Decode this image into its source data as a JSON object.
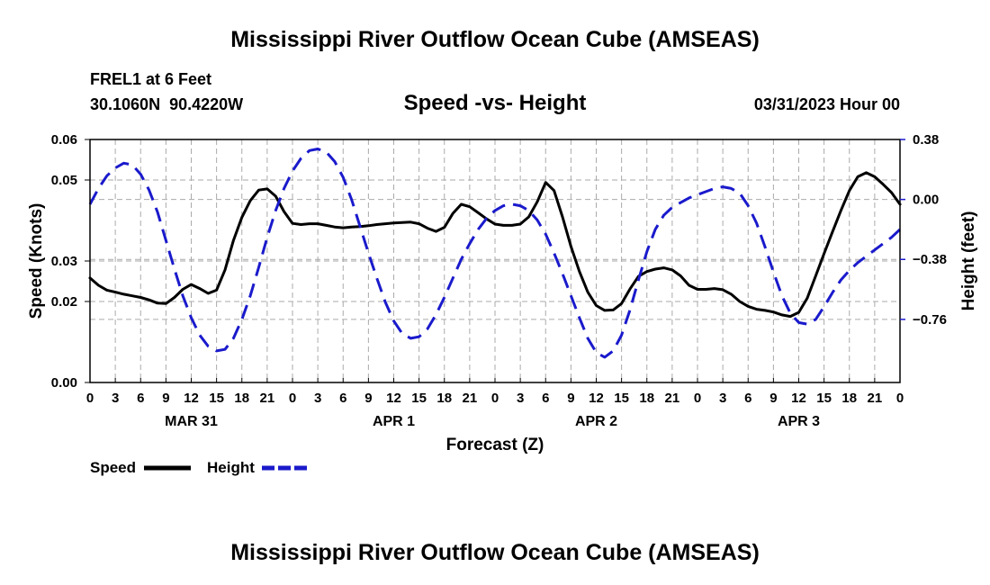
{
  "page": {
    "title": "Mississippi River Outflow Ocean Cube (AMSEAS)",
    "station": "FREL1 at 6 Feet",
    "coords": "30.1060N  90.4220W",
    "datetime": "03/31/2023 Hour 00",
    "footer_title": "Mississippi River Outflow Ocean Cube (AMSEAS)"
  },
  "colors": {
    "speed": "#000000",
    "height": "#1a1acc",
    "grid": "#aaaaaa"
  },
  "chart_data": {
    "type": "line",
    "title": "Speed -vs- Height",
    "xlabel": "Forecast (Z)",
    "ylabel": "Speed (Knots)",
    "y2label": "Height (feet)",
    "xlim": [
      0,
      96
    ],
    "ylim": [
      0.0,
      0.06
    ],
    "y2lim": [
      -1.16,
      0.38
    ],
    "y_ticks": [
      0.0,
      0.02,
      0.03,
      0.05,
      0.06
    ],
    "y_tick_labels": [
      "0.00",
      "0.02",
      "0.03",
      "0.05",
      "0.06"
    ],
    "y2_ticks": [
      0.38,
      0.0,
      -0.38,
      -0.76
    ],
    "y2_tick_labels": [
      "0.38",
      "0.00",
      "−0.38",
      "−0.76"
    ],
    "x_tick_labels": [
      "0",
      "3",
      "6",
      "9",
      "12",
      "15",
      "18",
      "21",
      "0",
      "3",
      "6",
      "9",
      "12",
      "15",
      "18",
      "21",
      "0",
      "3",
      "6",
      "9",
      "12",
      "15",
      "18",
      "21",
      "0",
      "3",
      "6",
      "9",
      "12",
      "15",
      "18",
      "21",
      "0"
    ],
    "day_labels": [
      {
        "label": "MAR 31",
        "hour": 12
      },
      {
        "label": "APR 1",
        "hour": 36
      },
      {
        "label": "APR 2",
        "hour": 60
      },
      {
        "label": "APR 3",
        "hour": 84
      }
    ],
    "grid": true,
    "legend": {
      "placement": "bottom-left",
      "entries": [
        "Speed",
        "Height"
      ]
    },
    "series": [
      {
        "name": "Speed",
        "axis": "left",
        "style": "solid",
        "x": [
          0,
          1,
          2,
          3,
          4,
          5,
          6,
          7,
          8,
          9,
          10,
          11,
          12,
          13,
          14,
          15,
          16,
          17,
          18,
          19,
          20,
          21,
          22,
          23,
          24,
          25,
          26,
          27,
          28,
          29,
          30,
          31,
          32,
          33,
          34,
          35,
          36,
          37,
          38,
          39,
          40,
          41,
          42,
          43,
          44,
          45,
          46,
          47,
          48,
          49,
          50,
          51,
          52,
          53,
          54,
          55,
          56,
          57,
          58,
          59,
          60,
          61,
          62,
          63,
          64,
          65,
          66,
          67,
          68,
          69,
          70,
          71,
          72,
          73,
          74,
          75,
          76,
          77,
          78,
          79,
          80,
          81,
          82,
          83,
          84,
          85,
          86,
          87,
          88,
          89,
          90,
          91,
          92,
          93,
          94,
          95,
          96
        ],
        "values": [
          0.0258,
          0.024,
          0.0228,
          0.0223,
          0.0218,
          0.0214,
          0.021,
          0.0204,
          0.0196,
          0.0195,
          0.021,
          0.023,
          0.0242,
          0.0232,
          0.022,
          0.0228,
          0.0278,
          0.0351,
          0.0408,
          0.0449,
          0.0475,
          0.0478,
          0.046,
          0.0422,
          0.0393,
          0.039,
          0.0392,
          0.0392,
          0.0388,
          0.0384,
          0.0382,
          0.0384,
          0.0385,
          0.0387,
          0.039,
          0.0392,
          0.0394,
          0.0395,
          0.0396,
          0.0392,
          0.0381,
          0.0373,
          0.0383,
          0.0417,
          0.044,
          0.0434,
          0.0419,
          0.0404,
          0.0391,
          0.0388,
          0.0388,
          0.0391,
          0.0409,
          0.0446,
          0.0494,
          0.0474,
          0.0409,
          0.0336,
          0.0274,
          0.0223,
          0.019,
          0.0178,
          0.0179,
          0.0195,
          0.0231,
          0.0262,
          0.0274,
          0.028,
          0.0283,
          0.0278,
          0.0263,
          0.024,
          0.023,
          0.023,
          0.0232,
          0.0229,
          0.0218,
          0.02,
          0.0188,
          0.0181,
          0.0178,
          0.0174,
          0.0167,
          0.0163,
          0.0173,
          0.0208,
          0.0263,
          0.0318,
          0.0372,
          0.0425,
          0.0474,
          0.0508,
          0.0518,
          0.0508,
          0.0489,
          0.0469,
          0.044
        ]
      },
      {
        "name": "Height",
        "axis": "right",
        "style": "dashed",
        "x": [
          0,
          1,
          2,
          3,
          4,
          5,
          6,
          7,
          8,
          9,
          10,
          11,
          12,
          13,
          14,
          15,
          16,
          17,
          18,
          19,
          20,
          21,
          22,
          23,
          24,
          25,
          26,
          27,
          28,
          29,
          30,
          31,
          32,
          33,
          34,
          35,
          36,
          37,
          38,
          39,
          40,
          41,
          42,
          43,
          44,
          45,
          46,
          47,
          48,
          49,
          50,
          51,
          52,
          53,
          54,
          55,
          56,
          57,
          58,
          59,
          60,
          61,
          62,
          63,
          64,
          65,
          66,
          67,
          68,
          69,
          70,
          71,
          72,
          73,
          74,
          75,
          76,
          77,
          78,
          79,
          80,
          81,
          82,
          83,
          84,
          85,
          86,
          87,
          88,
          89,
          90,
          91,
          92,
          93,
          94,
          95,
          96
        ],
        "values": [
          -0.03,
          0.07,
          0.15,
          0.2,
          0.23,
          0.22,
          0.16,
          0.06,
          -0.08,
          -0.26,
          -0.44,
          -0.61,
          -0.75,
          -0.86,
          -0.93,
          -0.96,
          -0.95,
          -0.88,
          -0.76,
          -0.61,
          -0.43,
          -0.24,
          -0.07,
          0.07,
          0.18,
          0.26,
          0.31,
          0.32,
          0.3,
          0.24,
          0.14,
          0.0,
          -0.17,
          -0.34,
          -0.5,
          -0.65,
          -0.77,
          -0.85,
          -0.88,
          -0.87,
          -0.82,
          -0.73,
          -0.62,
          -0.5,
          -0.38,
          -0.28,
          -0.19,
          -0.12,
          -0.07,
          -0.04,
          -0.03,
          -0.04,
          -0.07,
          -0.13,
          -0.22,
          -0.34,
          -0.47,
          -0.61,
          -0.75,
          -0.88,
          -0.97,
          -1.0,
          -0.96,
          -0.86,
          -0.7,
          -0.51,
          -0.33,
          -0.19,
          -0.1,
          -0.05,
          -0.02,
          0.01,
          0.03,
          0.05,
          0.07,
          0.08,
          0.07,
          0.04,
          -0.04,
          -0.15,
          -0.3,
          -0.46,
          -0.61,
          -0.72,
          -0.78,
          -0.79,
          -0.76,
          -0.68,
          -0.59,
          -0.51,
          -0.45,
          -0.4,
          -0.36,
          -0.32,
          -0.28,
          -0.24,
          -0.19
        ]
      }
    ]
  }
}
